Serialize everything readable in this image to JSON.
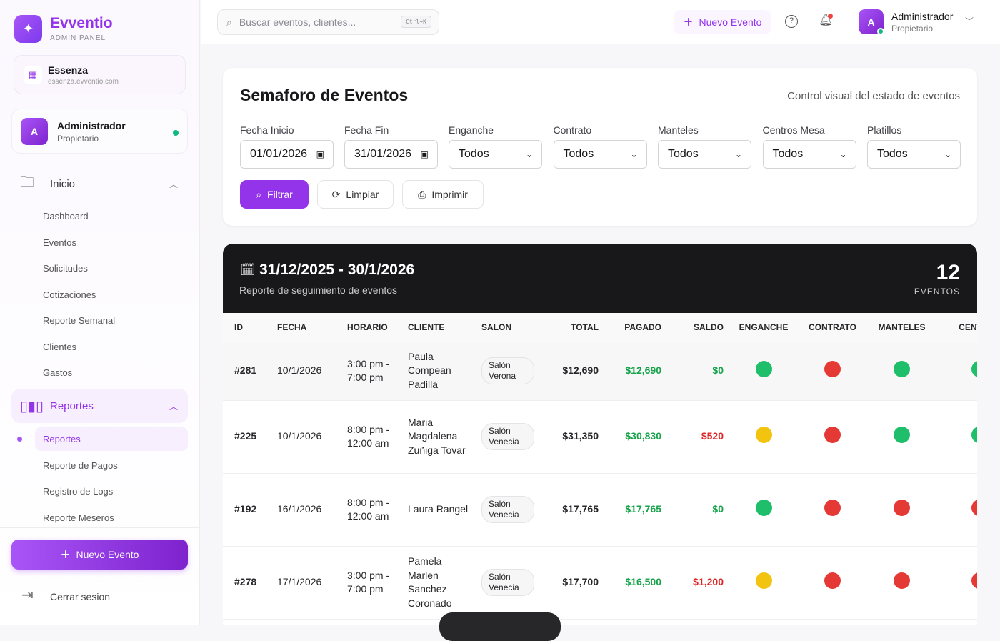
{
  "sidebar": {
    "brand": "Evventio",
    "brand_sub": "ADMIN PANEL",
    "tenant": {
      "name": "Essenza",
      "domain": "essenza.evventio.com"
    },
    "user": {
      "initial": "A",
      "name": "Administrador",
      "role": "Propietario"
    },
    "inicio": {
      "label": "Inicio",
      "items": [
        "Dashboard",
        "Eventos",
        "Solicitudes",
        "Cotizaciones",
        "Reporte Semanal",
        "Clientes",
        "Gastos"
      ]
    },
    "reportes": {
      "label": "Reportes",
      "items": [
        "Reportes",
        "Reporte de Pagos",
        "Registro de Logs",
        "Reporte Meseros"
      ],
      "active": "Reportes"
    },
    "new_event": "Nuevo Evento",
    "logout": "Cerrar sesion"
  },
  "header": {
    "search_placeholder": "Buscar eventos, clientes...",
    "shortcut": "Ctrl+K",
    "new_event": "Nuevo Evento",
    "user": {
      "initial": "A",
      "name": "Administrador",
      "role": "Propietario"
    }
  },
  "filters": {
    "title": "Semaforo de Eventos",
    "subtitle": "Control visual del estado de eventos",
    "fecha_inicio": {
      "label": "Fecha Inicio",
      "value": "01/01/2026"
    },
    "fecha_fin": {
      "label": "Fecha Fin",
      "value": "31/01/2026"
    },
    "selects": [
      {
        "label": "Enganche",
        "value": "Todos"
      },
      {
        "label": "Contrato",
        "value": "Todos"
      },
      {
        "label": "Manteles",
        "value": "Todos"
      },
      {
        "label": "Centros Mesa",
        "value": "Todos"
      },
      {
        "label": "Platillos",
        "value": "Todos"
      }
    ],
    "buttons": {
      "filter": "Filtrar",
      "clear": "Limpiar",
      "print": "Imprimir"
    }
  },
  "report": {
    "range": "31/12/2025 - 30/1/2026",
    "subtitle": "Reporte de seguimiento de eventos",
    "count": "12",
    "count_label": "EVENTOS",
    "columns": [
      "ID",
      "FECHA",
      "HORARIO",
      "CLIENTE",
      "SALON",
      "TOTAL",
      "PAGADO",
      "SALDO",
      "ENGANCHE",
      "CONTRATO",
      "MANTELES",
      "CENTROS"
    ],
    "rows": [
      {
        "id": "#281",
        "fecha": "10/1/2026",
        "horario": "3:00 pm - 7:00 pm",
        "cliente": "Paula Compean Padilla",
        "salon": "Salón Verona",
        "total": "$12,690",
        "pagado": "$12,690",
        "saldo": "$0",
        "saldo_status": "ok",
        "status": [
          "green",
          "red",
          "green",
          "green"
        ]
      },
      {
        "id": "#225",
        "fecha": "10/1/2026",
        "horario": "8:00 pm - 12:00 am",
        "cliente": "Maria Magdalena Zuñiga Tovar",
        "salon": "Salón Venecia",
        "total": "$31,350",
        "pagado": "$30,830",
        "saldo": "$520",
        "saldo_status": "due",
        "status": [
          "yellow",
          "red",
          "green",
          "green"
        ]
      },
      {
        "id": "#192",
        "fecha": "16/1/2026",
        "horario": "8:00 pm - 12:00 am",
        "cliente": "Laura Rangel",
        "salon": "Salón Venecia",
        "total": "$17,765",
        "pagado": "$17,765",
        "saldo": "$0",
        "saldo_status": "ok",
        "status": [
          "green",
          "red",
          "red",
          "red"
        ]
      },
      {
        "id": "#278",
        "fecha": "17/1/2026",
        "horario": "3:00 pm - 7:00 pm",
        "cliente": "Pamela Marlen Sanchez Coronado",
        "salon": "Salón Venecia",
        "total": "$17,700",
        "pagado": "$16,500",
        "saldo": "$1,200",
        "saldo_status": "due",
        "status": [
          "yellow",
          "red",
          "red",
          "red"
        ]
      }
    ]
  },
  "colors": {
    "accent": "#9333ea",
    "green": "#1ebe6a",
    "red": "#e53935",
    "yellow": "#f2c40f",
    "paid": "#16a34a",
    "due": "#dc2626"
  }
}
